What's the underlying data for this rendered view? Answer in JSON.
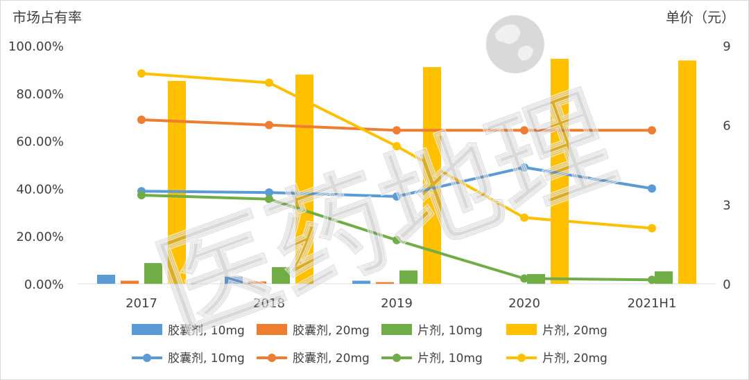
{
  "chart_data": {
    "type": "bar+line",
    "categories": [
      "2017",
      "2018",
      "2019",
      "2020",
      "2021H1"
    ],
    "y_left_label": "市场占有率",
    "y_left_ticks": [
      "0.00%",
      "20.00%",
      "40.00%",
      "60.00%",
      "80.00%",
      "100.00%"
    ],
    "y_left_range": [
      0,
      100
    ],
    "y_right_label": "单价（元）",
    "y_right_ticks": [
      "0",
      "3",
      "6",
      "9"
    ],
    "y_right_range": [
      0,
      9
    ],
    "bar_series": [
      {
        "name": "胶囊剂, 10mg",
        "color": "#5B9BD5",
        "values": [
          3.8,
          3.0,
          1.3,
          0,
          0
        ]
      },
      {
        "name": "胶囊剂, 20mg",
        "color": "#ED7D31",
        "values": [
          1.3,
          1.0,
          0.7,
          0,
          0
        ]
      },
      {
        "name": "片剂, 10mg",
        "color": "#70AD47",
        "values": [
          8.7,
          7.0,
          5.6,
          4.1,
          5.2
        ]
      },
      {
        "name": "片剂, 20mg",
        "color": "#FFC000",
        "values": [
          85.2,
          87.9,
          91.0,
          94.5,
          93.8
        ]
      }
    ],
    "line_series": [
      {
        "name": "胶囊剂, 10mg",
        "color": "#5B9BD5",
        "values": [
          3.5,
          3.45,
          3.3,
          4.4,
          3.6
        ]
      },
      {
        "name": "胶囊剂, 20mg",
        "color": "#ED7D31",
        "values": [
          6.2,
          6.0,
          5.8,
          5.8,
          5.8
        ]
      },
      {
        "name": "片剂, 10mg",
        "color": "#70AD47",
        "values": [
          3.35,
          3.2,
          1.65,
          0.2,
          0.15
        ]
      },
      {
        "name": "片剂, 20mg",
        "color": "#FFC000",
        "values": [
          7.95,
          7.6,
          5.2,
          2.5,
          2.1
        ]
      }
    ]
  },
  "watermark": {
    "text": "医药地理"
  }
}
